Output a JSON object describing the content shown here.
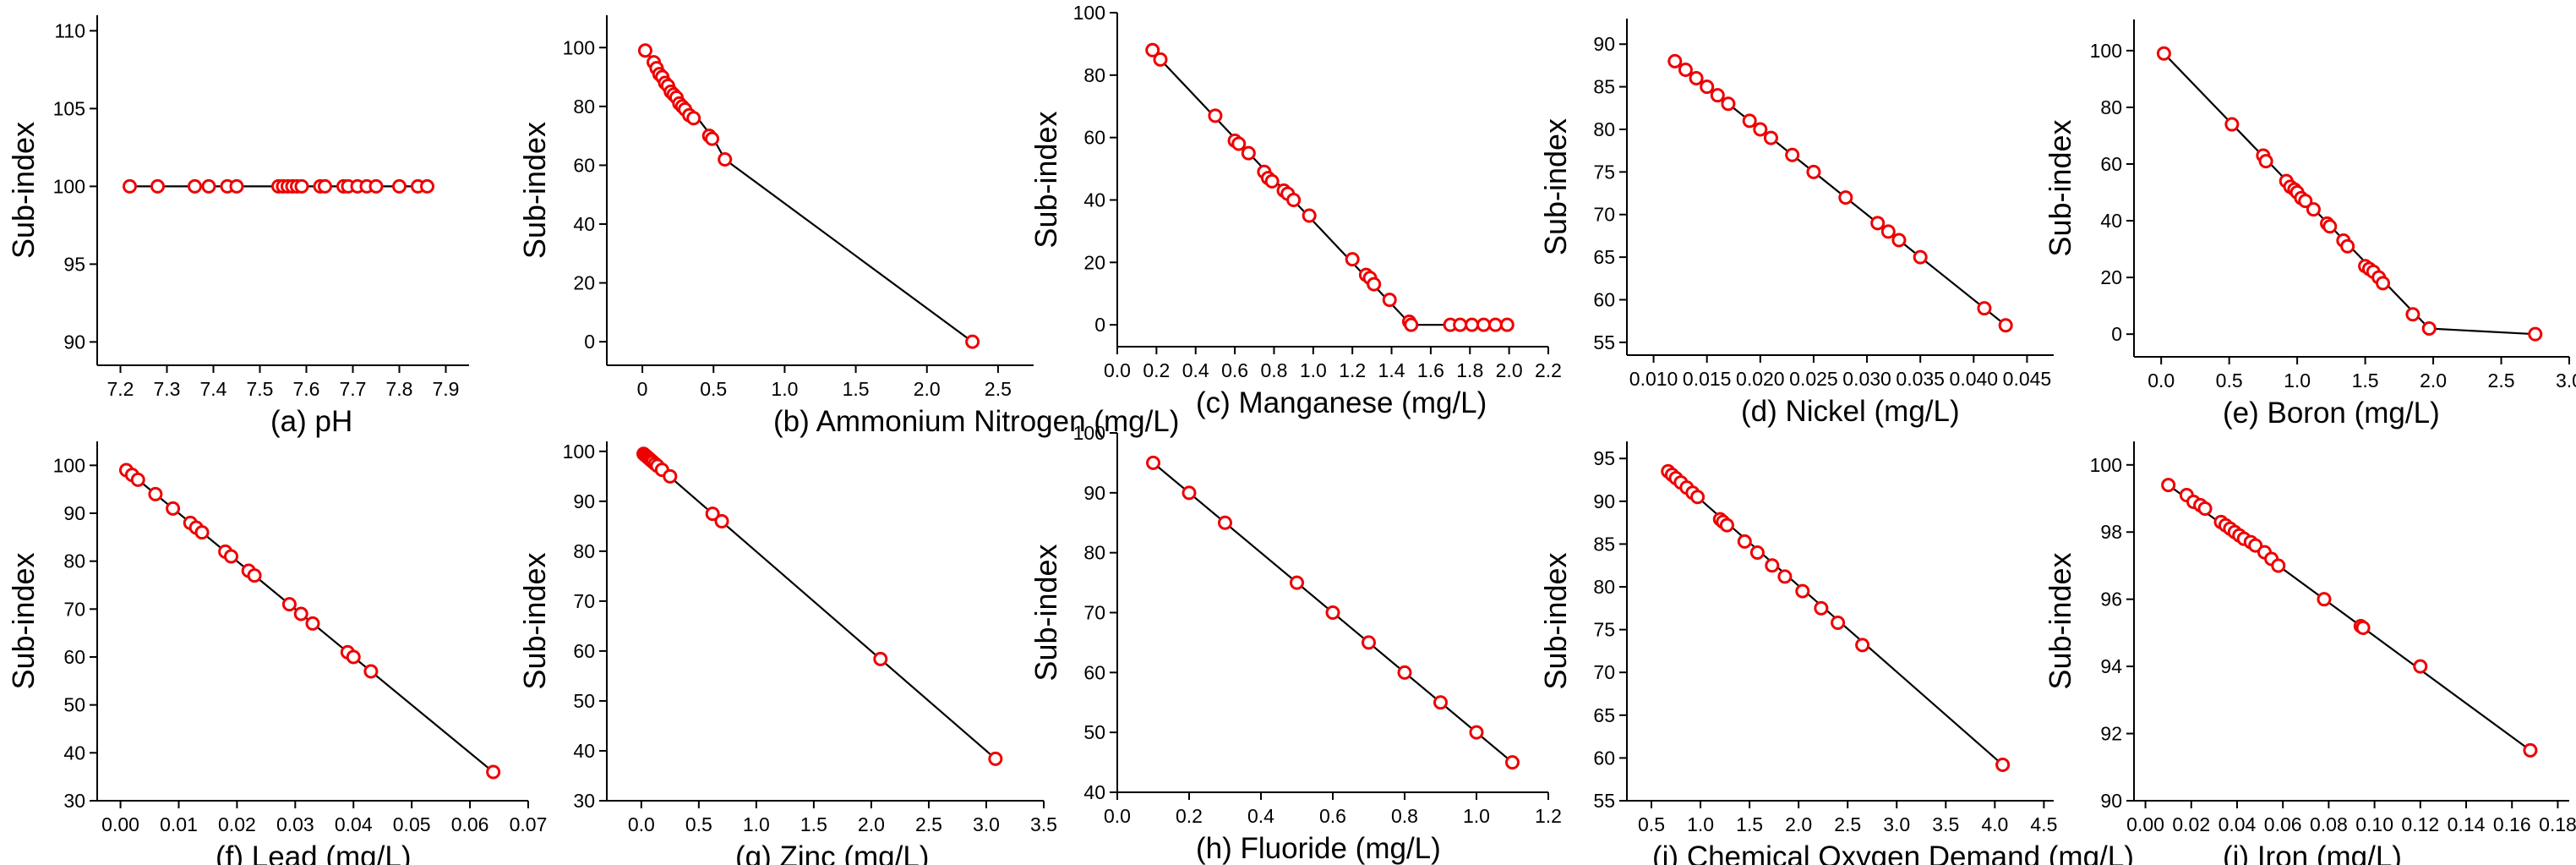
{
  "chart_data": [
    {
      "id": "a",
      "type": "line",
      "title": "",
      "xlabel_prefix": "(a)",
      "xlabel_text": "pH",
      "ylabel": "Sub-index",
      "xlim": [
        7.15,
        7.95
      ],
      "ylim": [
        88.5,
        111
      ],
      "xticks": [
        7.2,
        7.3,
        7.4,
        7.5,
        7.6,
        7.7,
        7.8,
        7.9
      ],
      "xtick_labels": [
        "7.2",
        "7.3",
        "7.4",
        "7.5",
        "7.6",
        "7.7",
        "7.8",
        "7.9"
      ],
      "yticks": [
        90,
        95,
        100,
        105,
        110
      ],
      "ytick_labels": [
        "90",
        "95",
        "100",
        "105",
        "110"
      ],
      "line": [
        [
          7.22,
          100
        ],
        [
          7.86,
          100
        ]
      ],
      "x": [
        7.22,
        7.28,
        7.36,
        7.39,
        7.43,
        7.45,
        7.54,
        7.55,
        7.56,
        7.57,
        7.58,
        7.59,
        7.63,
        7.64,
        7.68,
        7.69,
        7.71,
        7.73,
        7.75,
        7.8,
        7.84,
        7.86
      ],
      "y": [
        100,
        100,
        100,
        100,
        100,
        100,
        100,
        100,
        100,
        100,
        100,
        100,
        100,
        100,
        100,
        100,
        100,
        100,
        100,
        100,
        100,
        100
      ]
    },
    {
      "id": "b",
      "type": "line",
      "title": "",
      "xlabel_prefix": "(b)",
      "xlabel_text": "Ammonium Nitrogen (mg/L)",
      "ylabel": "Sub-index",
      "xlim": [
        -0.25,
        2.75
      ],
      "ylim": [
        -8,
        111
      ],
      "xticks": [
        0,
        0.5,
        1.0,
        1.5,
        2.0,
        2.5
      ],
      "xtick_labels": [
        "0",
        "0.5",
        "1.0",
        "1.5",
        "2.0",
        "2.5"
      ],
      "yticks": [
        0,
        20,
        40,
        60,
        80,
        100
      ],
      "ytick_labels": [
        "0",
        "20",
        "40",
        "60",
        "80",
        "100"
      ],
      "line": [
        [
          0.02,
          99
        ],
        [
          0.5,
          69
        ],
        [
          0.58,
          62
        ],
        [
          2.32,
          0
        ]
      ],
      "x": [
        0.02,
        0.08,
        0.1,
        0.12,
        0.14,
        0.16,
        0.18,
        0.2,
        0.22,
        0.24,
        0.26,
        0.28,
        0.3,
        0.33,
        0.36,
        0.47,
        0.49,
        0.58,
        2.32
      ],
      "y": [
        99,
        95,
        93,
        91,
        90,
        88,
        87,
        85,
        84,
        83,
        81,
        80,
        79,
        77,
        76,
        70,
        69,
        62,
        0
      ]
    },
    {
      "id": "c",
      "type": "line",
      "title": "",
      "xlabel_prefix": "(c)",
      "xlabel_text": "Manganese (mg/L)",
      "ylabel": "Sub-index",
      "xlim": [
        0,
        2.2
      ],
      "ylim": [
        -7,
        100
      ],
      "xticks": [
        0,
        0.2,
        0.4,
        0.6,
        0.8,
        1.0,
        1.2,
        1.4,
        1.6,
        1.8,
        2.0,
        2.2
      ],
      "xtick_labels": [
        "0.0",
        "0.2",
        "0.4",
        "0.6",
        "0.8",
        "1.0",
        "1.2",
        "1.4",
        "1.6",
        "1.8",
        "2.0",
        "2.2"
      ],
      "yticks": [
        0,
        20,
        40,
        60,
        80,
        100
      ],
      "ytick_labels": [
        "0",
        "20",
        "40",
        "60",
        "80",
        "100"
      ],
      "line": [
        [
          0.18,
          88
        ],
        [
          0.22,
          85
        ],
        [
          1.5,
          0
        ],
        [
          2.0,
          0
        ]
      ],
      "x": [
        0.18,
        0.22,
        0.5,
        0.6,
        0.62,
        0.67,
        0.75,
        0.77,
        0.79,
        0.85,
        0.87,
        0.9,
        0.98,
        1.2,
        1.27,
        1.29,
        1.31,
        1.39,
        1.49,
        1.5,
        1.7,
        1.75,
        1.81,
        1.87,
        1.93,
        1.99
      ],
      "y": [
        88,
        85,
        67,
        59,
        58,
        55,
        49,
        47,
        46,
        43,
        42,
        40,
        35,
        21,
        16,
        15,
        13,
        8,
        1,
        0,
        0,
        0,
        0,
        0,
        0,
        0
      ]
    },
    {
      "id": "d",
      "type": "line",
      "title": "",
      "xlabel_prefix": "(d)",
      "xlabel_text": "Nickel (mg/L)",
      "ylabel": "Sub-index",
      "xlim": [
        0.0075,
        0.0475
      ],
      "ylim": [
        53.5,
        93
      ],
      "xticks": [
        0.01,
        0.015,
        0.02,
        0.025,
        0.03,
        0.035,
        0.04,
        0.045
      ],
      "xtick_labels": [
        "0.010",
        "0.015",
        "0.020",
        "0.025",
        "0.030",
        "0.035",
        "0.040",
        "0.045"
      ],
      "yticks": [
        55,
        60,
        65,
        70,
        75,
        80,
        85,
        90
      ],
      "ytick_labels": [
        "55",
        "60",
        "65",
        "70",
        "75",
        "80",
        "85",
        "90"
      ],
      "line": [
        [
          0.012,
          88
        ],
        [
          0.043,
          57
        ]
      ],
      "x": [
        0.012,
        0.013,
        0.014,
        0.015,
        0.016,
        0.017,
        0.019,
        0.02,
        0.021,
        0.023,
        0.025,
        0.028,
        0.031,
        0.032,
        0.033,
        0.035,
        0.041,
        0.043
      ],
      "y": [
        88,
        87,
        86,
        85,
        84,
        83,
        81,
        80,
        79,
        77,
        75,
        72,
        69,
        68,
        67,
        65,
        59,
        57
      ]
    },
    {
      "id": "e",
      "type": "line",
      "title": "",
      "xlabel_prefix": "(e)",
      "xlabel_text": "Boron (mg/L)",
      "ylabel": "Sub-index",
      "xlim": [
        -0.2,
        3.0
      ],
      "ylim": [
        -8,
        111
      ],
      "xticks": [
        0,
        0.5,
        1.0,
        1.5,
        2.0,
        2.5,
        3.0
      ],
      "xtick_labels": [
        "0.0",
        "0.5",
        "1.0",
        "1.5",
        "2.0",
        "2.5",
        "3.0"
      ],
      "yticks": [
        0,
        20,
        40,
        60,
        80,
        100
      ],
      "ytick_labels": [
        "0",
        "20",
        "40",
        "60",
        "80",
        "100"
      ],
      "line": [
        [
          0.02,
          99
        ],
        [
          1.97,
          2
        ],
        [
          2.75,
          0
        ]
      ],
      "x": [
        0.02,
        0.52,
        0.75,
        0.77,
        0.92,
        0.95,
        0.98,
        1.0,
        1.03,
        1.06,
        1.12,
        1.22,
        1.24,
        1.34,
        1.37,
        1.5,
        1.53,
        1.56,
        1.6,
        1.63,
        1.85,
        1.97,
        2.75
      ],
      "y": [
        99,
        74,
        63,
        61,
        54,
        52,
        51,
        50,
        48,
        47,
        44,
        39,
        38,
        33,
        31,
        24,
        23,
        22,
        20,
        18,
        7,
        2,
        0
      ]
    },
    {
      "id": "f",
      "type": "line",
      "title": "",
      "xlabel_prefix": "(f)",
      "xlabel_text": "Lead (mg/L)",
      "ylabel": "Sub-index",
      "xlim": [
        -0.004,
        0.07
      ],
      "ylim": [
        30,
        105
      ],
      "xticks": [
        0,
        0.01,
        0.02,
        0.03,
        0.04,
        0.05,
        0.06,
        0.07
      ],
      "xtick_labels": [
        "0.00",
        "0.01",
        "0.02",
        "0.03",
        "0.04",
        "0.05",
        "0.06",
        "0.07"
      ],
      "yticks": [
        30,
        40,
        50,
        60,
        70,
        80,
        90,
        100
      ],
      "ytick_labels": [
        "30",
        "40",
        "50",
        "60",
        "70",
        "80",
        "90",
        "100"
      ],
      "line": [
        [
          0.001,
          99
        ],
        [
          0.064,
          36
        ]
      ],
      "x": [
        0.001,
        0.002,
        0.003,
        0.006,
        0.009,
        0.012,
        0.013,
        0.014,
        0.018,
        0.019,
        0.022,
        0.023,
        0.029,
        0.031,
        0.033,
        0.039,
        0.04,
        0.043,
        0.064
      ],
      "y": [
        99,
        98,
        97,
        94,
        91,
        88,
        87,
        86,
        82,
        81,
        78,
        77,
        71,
        69,
        67,
        61,
        60,
        57,
        36
      ]
    },
    {
      "id": "g",
      "type": "line",
      "title": "",
      "xlabel_prefix": "(g)",
      "xlabel_text": "Zinc (mg/L)",
      "ylabel": "Sub-index",
      "xlim": [
        -0.3,
        3.5
      ],
      "ylim": [
        30,
        102
      ],
      "xticks": [
        0,
        0.5,
        1.0,
        1.5,
        2.0,
        2.5,
        3.0,
        3.5
      ],
      "xtick_labels": [
        "0.0",
        "0.5",
        "1.0",
        "1.5",
        "2.0",
        "2.5",
        "3.0",
        "3.5"
      ],
      "yticks": [
        30,
        40,
        50,
        60,
        70,
        80,
        90,
        100
      ],
      "ytick_labels": [
        "30",
        "40",
        "50",
        "60",
        "70",
        "80",
        "90",
        "100"
      ],
      "line": [
        [
          0.02,
          99.5
        ],
        [
          3.08,
          38.4
        ]
      ],
      "x": [
        0.02,
        0.03,
        0.04,
        0.05,
        0.06,
        0.07,
        0.08,
        0.09,
        0.1,
        0.12,
        0.14,
        0.18,
        0.25,
        0.62,
        0.7,
        2.08,
        3.08
      ],
      "y": [
        99.5,
        99.3,
        99.1,
        98.9,
        98.7,
        98.5,
        98.3,
        98.1,
        97.9,
        97.5,
        97.1,
        96.3,
        95.0,
        87.5,
        86.0,
        58.4,
        38.4
      ]
    },
    {
      "id": "h",
      "type": "line",
      "title": "",
      "xlabel_prefix": "(h)",
      "xlabel_text": "Fluoride (mg/L)",
      "ylabel": "Sub-index",
      "xlim": [
        0,
        1.2
      ],
      "ylim": [
        40,
        100
      ],
      "xticks": [
        0,
        0.2,
        0.4,
        0.6,
        0.8,
        1.0,
        1.2
      ],
      "xtick_labels": [
        "0.0",
        "0.2",
        "0.4",
        "0.6",
        "0.8",
        "1.0",
        "1.2"
      ],
      "yticks": [
        40,
        50,
        60,
        70,
        80,
        90,
        100
      ],
      "ytick_labels": [
        "40",
        "50",
        "60",
        "70",
        "80",
        "90",
        "100"
      ],
      "line": [
        [
          0.1,
          95
        ],
        [
          1.1,
          45
        ]
      ],
      "x": [
        0.1,
        0.2,
        0.3,
        0.5,
        0.6,
        0.7,
        0.8,
        0.9,
        1.0,
        1.1
      ],
      "y": [
        95,
        90,
        85,
        75,
        70,
        65,
        60,
        55,
        50,
        45
      ]
    },
    {
      "id": "i",
      "type": "line",
      "title": "",
      "xlabel_prefix": "(i)",
      "xlabel_text": "Chemical Oxygen Demand (mg/L)",
      "ylabel": "Sub-index",
      "xlim": [
        0.25,
        4.6
      ],
      "ylim": [
        55,
        97
      ],
      "xticks": [
        0.5,
        1.0,
        1.5,
        2.0,
        2.5,
        3.0,
        3.5,
        4.0,
        4.5
      ],
      "xtick_labels": [
        "0.5",
        "1.0",
        "1.5",
        "2.0",
        "2.5",
        "3.0",
        "3.5",
        "4.0",
        "4.5"
      ],
      "yticks": [
        55,
        60,
        65,
        70,
        75,
        80,
        85,
        90,
        95
      ],
      "ytick_labels": [
        "55",
        "60",
        "65",
        "70",
        "75",
        "80",
        "85",
        "90",
        "95"
      ],
      "line": [
        [
          0.67,
          93.5
        ],
        [
          4.08,
          59.2
        ]
      ],
      "x": [
        0.67,
        0.71,
        0.75,
        0.8,
        0.86,
        0.92,
        0.97,
        1.2,
        1.23,
        1.27,
        1.45,
        1.58,
        1.73,
        1.86,
        2.04,
        2.23,
        2.4,
        2.65,
        4.08
      ],
      "y": [
        93.5,
        93.1,
        92.7,
        92.2,
        91.6,
        91.0,
        90.5,
        87.9,
        87.6,
        87.2,
        85.3,
        84.0,
        82.5,
        81.2,
        79.5,
        77.5,
        75.8,
        73.2,
        59.2
      ]
    },
    {
      "id": "j",
      "type": "line",
      "title": "",
      "xlabel_prefix": "(j)",
      "xlabel_text": "Iron (mg/L)",
      "ylabel": "Sub-index",
      "xlim": [
        -0.005,
        0.185
      ],
      "ylim": [
        90,
        100.7
      ],
      "xticks": [
        0,
        0.02,
        0.04,
        0.06,
        0.08,
        0.1,
        0.12,
        0.14,
        0.16,
        0.18
      ],
      "xtick_labels": [
        "0.00",
        "0.02",
        "0.04",
        "0.06",
        "0.08",
        "0.10",
        "0.12",
        "0.14",
        "0.16",
        "0.18"
      ],
      "yticks": [
        90,
        92,
        94,
        96,
        98,
        100
      ],
      "ytick_labels": [
        "90",
        "92",
        "94",
        "96",
        "98",
        "100"
      ],
      "line": [
        [
          0.01,
          99.4
        ],
        [
          0.168,
          91.5
        ]
      ],
      "x": [
        0.01,
        0.018,
        0.021,
        0.024,
        0.026,
        0.033,
        0.035,
        0.037,
        0.039,
        0.041,
        0.043,
        0.046,
        0.048,
        0.052,
        0.055,
        0.058,
        0.078,
        0.094,
        0.095,
        0.12,
        0.168
      ],
      "y": [
        99.4,
        99.1,
        98.9,
        98.8,
        98.7,
        98.3,
        98.2,
        98.1,
        98.0,
        97.9,
        97.8,
        97.7,
        97.6,
        97.4,
        97.2,
        97.0,
        96.0,
        95.2,
        95.15,
        94.0,
        91.5
      ]
    }
  ]
}
